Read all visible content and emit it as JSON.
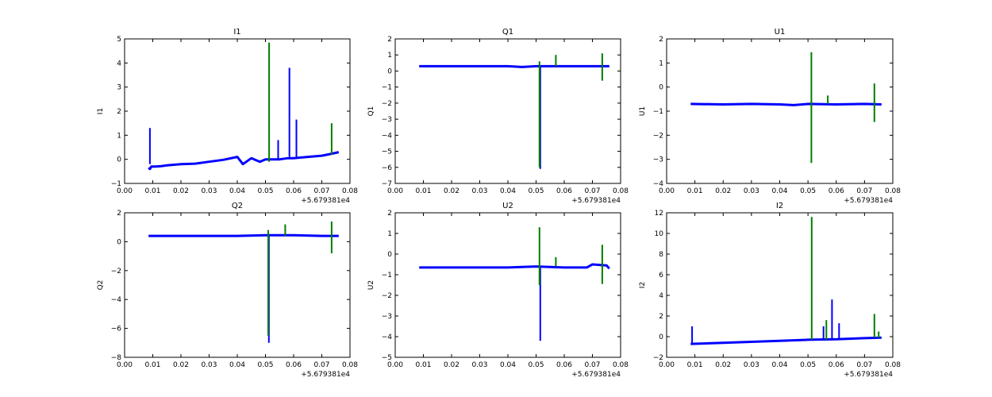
{
  "figure": {
    "colors": {
      "primary": "#0000ff",
      "secondary": "#007f00"
    },
    "offset_label": "+5.679381e4"
  },
  "chart_data": [
    {
      "type": "line",
      "title": "I1",
      "ylabel": "I1",
      "xlim": [
        0.0,
        0.08
      ],
      "ylim": [
        -1,
        5
      ],
      "xticks": [
        "0.00",
        "0.01",
        "0.02",
        "0.03",
        "0.04",
        "0.05",
        "0.06",
        "0.07",
        "0.08"
      ],
      "yticks": [
        -1,
        0,
        1,
        2,
        3,
        4,
        5
      ],
      "series": [
        {
          "color": "#0000ff",
          "x": [
            0.0085,
            0.009,
            0.0095,
            0.011,
            0.013,
            0.015,
            0.02,
            0.025,
            0.03,
            0.035,
            0.04,
            0.042,
            0.045,
            0.048,
            0.05,
            0.052,
            0.055,
            0.058,
            0.06,
            0.065,
            0.07,
            0.073,
            0.076
          ],
          "y": [
            -0.35,
            -0.4,
            -0.3,
            -0.3,
            -0.28,
            -0.25,
            -0.2,
            -0.18,
            -0.1,
            -0.02,
            0.1,
            -0.2,
            0.05,
            -0.1,
            0,
            0,
            0,
            0.05,
            0.05,
            0.1,
            0.15,
            0.22,
            0.3
          ]
        },
        {
          "color": "#0000ff",
          "x": [
            0.009,
            0.009
          ],
          "y": [
            -0.2,
            1.3
          ]
        },
        {
          "color": "#0000ff",
          "x": [
            0.0585,
            0.0585
          ],
          "y": [
            0.1,
            3.8
          ]
        },
        {
          "color": "#0000ff",
          "x": [
            0.061,
            0.061
          ],
          "y": [
            0.1,
            1.65
          ]
        },
        {
          "color": "#0000ff",
          "x": [
            0.0545,
            0.0545
          ],
          "y": [
            0.0,
            0.8
          ]
        },
        {
          "color": "#007f00",
          "x": [
            0.0513,
            0.0513
          ],
          "y": [
            -0.1,
            4.85
          ]
        },
        {
          "color": "#007f00",
          "x": [
            0.0735,
            0.0735
          ],
          "y": [
            0.2,
            1.5
          ]
        }
      ]
    },
    {
      "type": "line",
      "title": "Q1",
      "ylabel": "Q1",
      "xlim": [
        0.0,
        0.08
      ],
      "ylim": [
        -7,
        2
      ],
      "xticks": [
        "0.00",
        "0.01",
        "0.02",
        "0.03",
        "0.04",
        "0.05",
        "0.06",
        "0.07",
        "0.08"
      ],
      "yticks": [
        -7,
        -6,
        -5,
        -4,
        -3,
        -2,
        -1,
        0,
        1,
        2
      ],
      "series": [
        {
          "color": "#0000ff",
          "x": [
            0.0085,
            0.02,
            0.03,
            0.04,
            0.045,
            0.05,
            0.06,
            0.07,
            0.076
          ],
          "y": [
            0.3,
            0.3,
            0.3,
            0.3,
            0.25,
            0.3,
            0.3,
            0.3,
            0.3
          ]
        },
        {
          "color": "#0000ff",
          "x": [
            0.0515,
            0.0515
          ],
          "y": [
            0.3,
            -6.1
          ]
        },
        {
          "color": "#007f00",
          "x": [
            0.0512,
            0.0512
          ],
          "y": [
            0.6,
            -6.0
          ]
        },
        {
          "color": "#007f00",
          "x": [
            0.057,
            0.057
          ],
          "y": [
            0.3,
            1.0
          ]
        },
        {
          "color": "#007f00",
          "x": [
            0.0735,
            0.0735
          ],
          "y": [
            1.1,
            -0.6
          ]
        }
      ]
    },
    {
      "type": "line",
      "title": "U1",
      "ylabel": "U1",
      "xlim": [
        0.0,
        0.08
      ],
      "ylim": [
        -4,
        2
      ],
      "xticks": [
        "0.00",
        "0.01",
        "0.02",
        "0.03",
        "0.04",
        "0.05",
        "0.06",
        "0.07",
        "0.08"
      ],
      "yticks": [
        -4,
        -3,
        -2,
        -1,
        0,
        1,
        2
      ],
      "series": [
        {
          "color": "#0000ff",
          "x": [
            0.0085,
            0.02,
            0.03,
            0.04,
            0.045,
            0.05,
            0.06,
            0.07,
            0.076
          ],
          "y": [
            -0.7,
            -0.72,
            -0.7,
            -0.72,
            -0.75,
            -0.7,
            -0.72,
            -0.7,
            -0.72
          ]
        },
        {
          "color": "#007f00",
          "x": [
            0.0512,
            0.0512
          ],
          "y": [
            1.45,
            -3.15
          ]
        },
        {
          "color": "#007f00",
          "x": [
            0.057,
            0.057
          ],
          "y": [
            -0.7,
            -0.35
          ]
        },
        {
          "color": "#007f00",
          "x": [
            0.0735,
            0.0735
          ],
          "y": [
            0.15,
            -1.45
          ]
        }
      ]
    },
    {
      "type": "line",
      "title": "Q2",
      "ylabel": "Q2",
      "xlim": [
        0.0,
        0.08
      ],
      "ylim": [
        -8,
        2
      ],
      "xticks": [
        "0.00",
        "0.01",
        "0.02",
        "0.03",
        "0.04",
        "0.05",
        "0.06",
        "0.07",
        "0.08"
      ],
      "yticks": [
        -8,
        -6,
        -4,
        -2,
        0,
        2
      ],
      "series": [
        {
          "color": "#0000ff",
          "x": [
            0.0085,
            0.02,
            0.03,
            0.04,
            0.05,
            0.06,
            0.07,
            0.076
          ],
          "y": [
            0.4,
            0.4,
            0.4,
            0.4,
            0.45,
            0.45,
            0.4,
            0.4
          ]
        },
        {
          "color": "#0000ff",
          "x": [
            0.0512,
            0.0512
          ],
          "y": [
            0.4,
            -7.0
          ]
        },
        {
          "color": "#007f00",
          "x": [
            0.051,
            0.051
          ],
          "y": [
            0.8,
            -6.5
          ]
        },
        {
          "color": "#007f00",
          "x": [
            0.057,
            0.057
          ],
          "y": [
            0.4,
            1.2
          ]
        },
        {
          "color": "#007f00",
          "x": [
            0.0735,
            0.0735
          ],
          "y": [
            1.4,
            -0.8
          ]
        }
      ]
    },
    {
      "type": "line",
      "title": "U2",
      "ylabel": "U2",
      "xlim": [
        0.0,
        0.08
      ],
      "ylim": [
        -5,
        2
      ],
      "xticks": [
        "0.00",
        "0.01",
        "0.02",
        "0.03",
        "0.04",
        "0.05",
        "0.06",
        "0.07",
        "0.08"
      ],
      "yticks": [
        -5,
        -4,
        -3,
        -2,
        -1,
        0,
        1,
        2
      ],
      "series": [
        {
          "color": "#0000ff",
          "x": [
            0.0085,
            0.02,
            0.03,
            0.04,
            0.05,
            0.06,
            0.068,
            0.07,
            0.075,
            0.076
          ],
          "y": [
            -0.65,
            -0.65,
            -0.65,
            -0.65,
            -0.6,
            -0.65,
            -0.65,
            -0.5,
            -0.55,
            -0.7
          ]
        },
        {
          "color": "#0000ff",
          "x": [
            0.0515,
            0.0515
          ],
          "y": [
            -0.6,
            -4.2
          ]
        },
        {
          "color": "#007f00",
          "x": [
            0.0512,
            0.0512
          ],
          "y": [
            1.3,
            -1.5
          ]
        },
        {
          "color": "#007f00",
          "x": [
            0.057,
            0.057
          ],
          "y": [
            -0.6,
            -0.15
          ]
        },
        {
          "color": "#007f00",
          "x": [
            0.0735,
            0.0735
          ],
          "y": [
            0.45,
            -1.45
          ]
        }
      ]
    },
    {
      "type": "line",
      "title": "I2",
      "ylabel": "I2",
      "xlim": [
        0.0,
        0.08
      ],
      "ylim": [
        -2,
        12
      ],
      "xticks": [
        "0.00",
        "0.01",
        "0.02",
        "0.03",
        "0.04",
        "0.05",
        "0.06",
        "0.07",
        "0.08"
      ],
      "yticks": [
        -2,
        0,
        2,
        4,
        6,
        8,
        10,
        12
      ],
      "series": [
        {
          "color": "#0000ff",
          "x": [
            0.0085,
            0.02,
            0.03,
            0.04,
            0.05,
            0.06,
            0.07,
            0.076
          ],
          "y": [
            -0.7,
            -0.6,
            -0.5,
            -0.4,
            -0.3,
            -0.25,
            -0.15,
            -0.1
          ]
        },
        {
          "color": "#0000ff",
          "x": [
            0.009,
            0.009
          ],
          "y": [
            -0.6,
            1.0
          ]
        },
        {
          "color": "#0000ff",
          "x": [
            0.0585,
            0.0585
          ],
          "y": [
            -0.3,
            3.6
          ]
        },
        {
          "color": "#0000ff",
          "x": [
            0.061,
            0.061
          ],
          "y": [
            -0.3,
            1.3
          ]
        },
        {
          "color": "#0000ff",
          "x": [
            0.0555,
            0.0555
          ],
          "y": [
            -0.3,
            1.0
          ]
        },
        {
          "color": "#007f00",
          "x": [
            0.0513,
            0.0513
          ],
          "y": [
            -0.3,
            11.6
          ]
        },
        {
          "color": "#007f00",
          "x": [
            0.0565,
            0.0565
          ],
          "y": [
            -0.3,
            1.6
          ]
        },
        {
          "color": "#007f00",
          "x": [
            0.0735,
            0.0735
          ],
          "y": [
            -0.1,
            2.2
          ]
        },
        {
          "color": "#007f00",
          "x": [
            0.075,
            0.075
          ],
          "y": [
            -0.1,
            0.5
          ]
        }
      ]
    }
  ]
}
